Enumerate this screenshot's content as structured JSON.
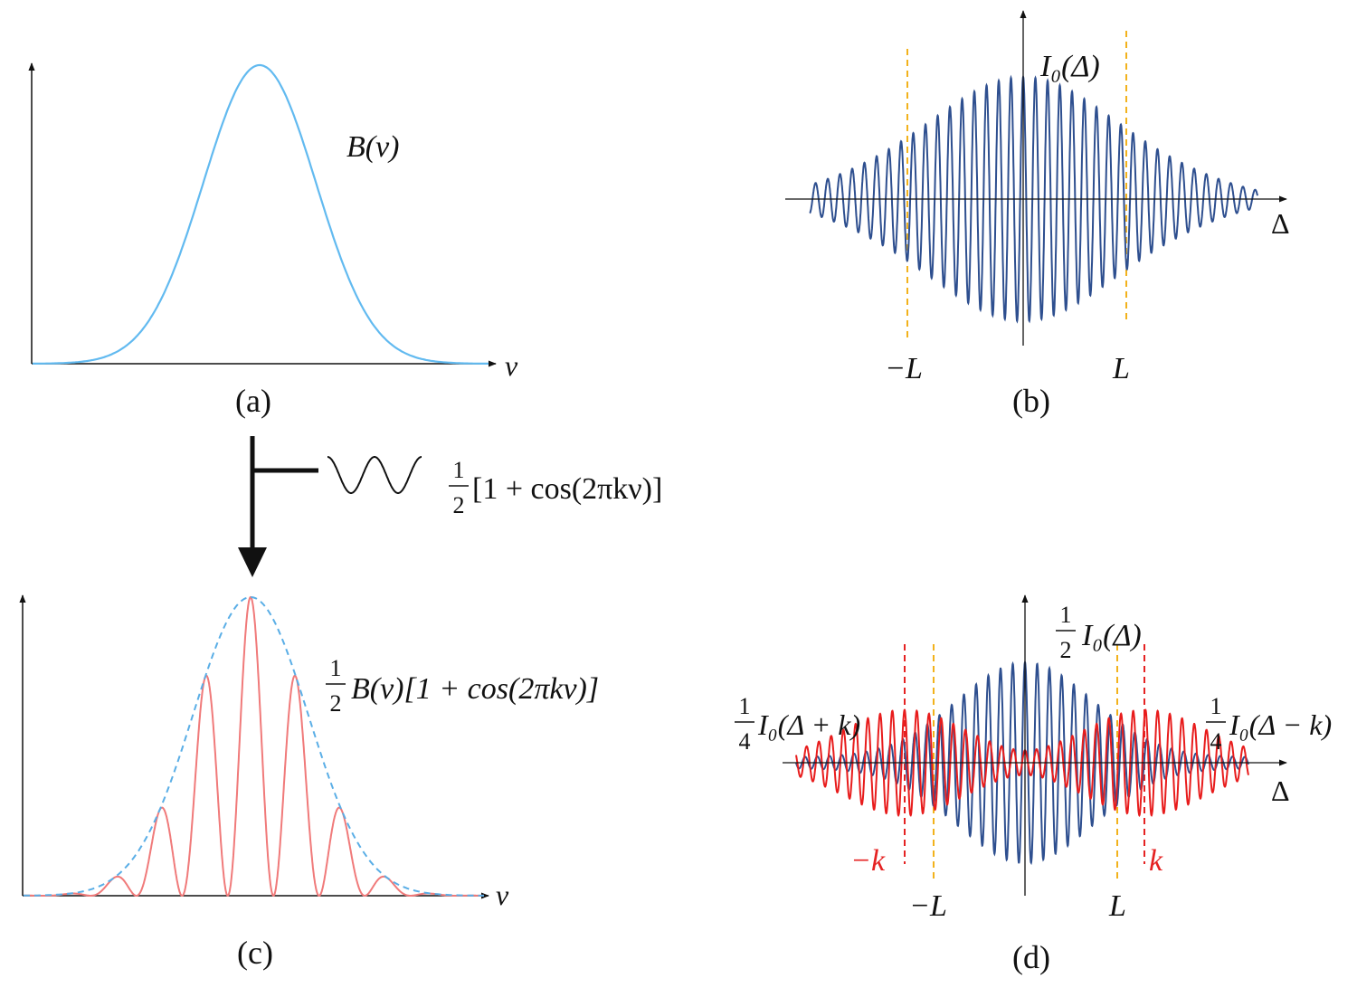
{
  "colors": {
    "spectrum": "#62baf0",
    "interferogram": "#2e4f8f",
    "modulated": "#f07a7a",
    "envelope": "#5aaee6",
    "shifted": "#e81c1c",
    "marker_L": "#f2b21c",
    "marker_k": "#e52222",
    "axis": "#111111"
  },
  "panels": {
    "a": {
      "caption": "(a)",
      "axis_label": "ν",
      "curve_label": "B(ν)"
    },
    "b": {
      "caption": "(b)",
      "axis_label": "Δ",
      "curve_label": "I₀(Δ)",
      "marker_neg": "−L",
      "marker_pos": "L"
    },
    "c": {
      "caption": "(c)",
      "axis_label": "ν",
      "curve_label": "B(ν)[1 + cos(2πkν)]",
      "curve_label_fraction": "1/2"
    },
    "d": {
      "caption": "(d)",
      "axis_label": "Δ",
      "center_label": "I₀(Δ)",
      "center_fraction": "1/2",
      "left_label": "I₀(Δ + k)",
      "left_fraction": "1/4",
      "right_label": "I₀(Δ − k)",
      "right_fraction": "1/4",
      "marker_L_neg": "−L",
      "marker_L_pos": "L",
      "marker_k_neg": "−k",
      "marker_k_pos": "k"
    }
  },
  "operation": {
    "formula": "[1 + cos(2πkν)]",
    "fraction": "1/2",
    "wave_icon": "cosine-wave-icon"
  }
}
